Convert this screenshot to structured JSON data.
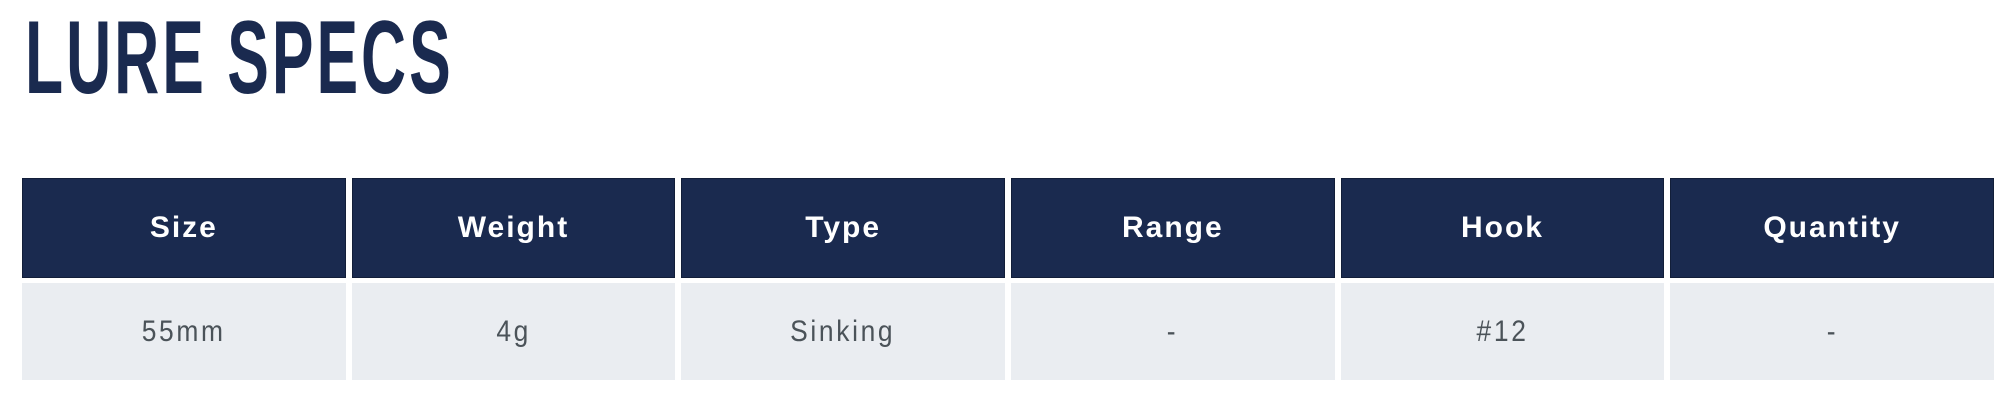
{
  "title": "LURE SPECS",
  "colors": {
    "navy": "#1a2a4f",
    "row_bg": "#eaedf1",
    "data_text": "#4b5359"
  },
  "table": {
    "columns": [
      "Size",
      "Weight",
      "Type",
      "Range",
      "Hook",
      "Quantity"
    ],
    "rows": [
      [
        "55mm",
        "4g",
        "Sinking",
        "-",
        "#12",
        "-"
      ]
    ]
  }
}
